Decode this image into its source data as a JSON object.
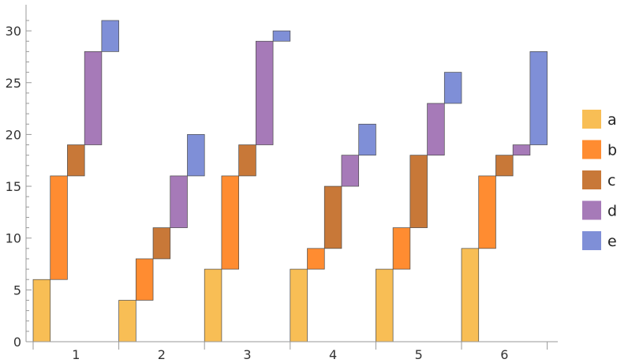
{
  "chart_data": {
    "type": "bar",
    "stacking": "staggered-waterfall",
    "categories": [
      "1",
      "2",
      "3",
      "4",
      "5",
      "6"
    ],
    "series": [
      {
        "name": "a",
        "color": "#F8BE55",
        "values": [
          6,
          4,
          7,
          7,
          7,
          9
        ]
      },
      {
        "name": "b",
        "color": "#FF8C31",
        "values": [
          10,
          4,
          9,
          2,
          4,
          7
        ]
      },
      {
        "name": "c",
        "color": "#C87838",
        "values": [
          3,
          3,
          3,
          6,
          7,
          2
        ]
      },
      {
        "name": "d",
        "color": "#A67AB8",
        "values": [
          9,
          5,
          10,
          3,
          5,
          1
        ]
      },
      {
        "name": "e",
        "color": "#7F8FD7",
        "values": [
          3,
          4,
          1,
          3,
          3,
          9
        ]
      }
    ],
    "ylim": [
      0,
      31
    ],
    "yticks": [
      "0",
      "5",
      "10",
      "15",
      "20",
      "25",
      "30"
    ],
    "xlabel": "",
    "ylabel": "",
    "title": "",
    "grid": false,
    "legend_position": "right"
  }
}
